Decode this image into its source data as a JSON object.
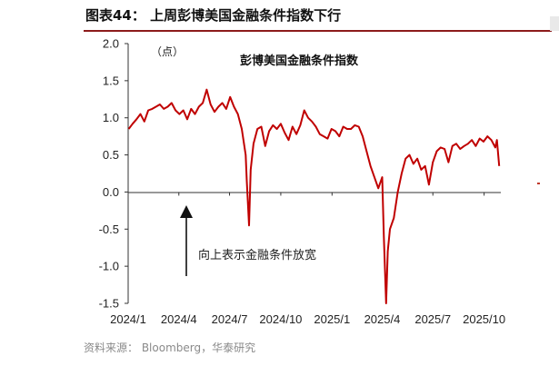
{
  "figure": {
    "title": "图表44：  上周彭博美国金融条件指数下行",
    "source": "资料来源：  Bloomberg，华泰研究"
  },
  "chart_data": {
    "type": "line",
    "title": "彭博美国金融条件指数",
    "unit": "（点）",
    "xlabel": "",
    "ylabel": "",
    "ylim": [
      -1.5,
      2.0
    ],
    "yticks": [
      "2.0",
      "1.5",
      "1.0",
      "0.5",
      "0.0",
      "-0.5",
      "-1.0",
      "-1.5"
    ],
    "yticks_values": [
      2.0,
      1.5,
      1.0,
      0.5,
      0.0,
      -0.5,
      -1.0,
      -1.5
    ],
    "xticks": [
      "2024/1",
      "2024/4",
      "2024/7",
      "2024/10",
      "2025/1",
      "2025/4",
      "2025/7",
      "2025/10"
    ],
    "xticks_values": [
      "2024-01-01",
      "2024-04-01",
      "2024-07-01",
      "2024-10-01",
      "2025-01-01",
      "2025-04-01",
      "2025-07-01",
      "2025-10-01"
    ],
    "xlim": [
      "2024-01-01",
      "2025-10-31"
    ],
    "grid": false,
    "line_color": "#c00000",
    "series": [
      {
        "x": [
          "2024-01-02",
          "2024-01-09",
          "2024-01-16",
          "2024-01-23",
          "2024-01-30",
          "2024-02-06",
          "2024-02-13",
          "2024-02-20",
          "2024-02-27",
          "2024-03-05",
          "2024-03-12",
          "2024-03-19",
          "2024-03-26",
          "2024-04-02",
          "2024-04-09",
          "2024-04-16",
          "2024-04-23",
          "2024-04-30",
          "2024-05-07",
          "2024-05-14",
          "2024-05-21",
          "2024-05-28",
          "2024-06-04",
          "2024-06-11",
          "2024-06-18",
          "2024-06-25",
          "2024-07-02",
          "2024-07-09",
          "2024-07-16",
          "2024-07-23",
          "2024-07-30",
          "2024-08-01",
          "2024-08-05",
          "2024-08-08",
          "2024-08-13",
          "2024-08-20",
          "2024-08-27",
          "2024-09-03",
          "2024-09-10",
          "2024-09-17",
          "2024-09-24",
          "2024-10-01",
          "2024-10-08",
          "2024-10-15",
          "2024-10-22",
          "2024-10-29",
          "2024-11-05",
          "2024-11-12",
          "2024-11-19",
          "2024-11-26",
          "2024-12-03",
          "2024-12-10",
          "2024-12-17",
          "2024-12-24",
          "2024-12-31",
          "2025-01-07",
          "2025-01-14",
          "2025-01-21",
          "2025-01-28",
          "2025-02-04",
          "2025-02-11",
          "2025-02-18",
          "2025-02-25",
          "2025-03-04",
          "2025-03-11",
          "2025-03-18",
          "2025-03-25",
          "2025-04-01",
          "2025-04-04",
          "2025-04-08",
          "2025-04-11",
          "2025-04-15",
          "2025-04-22",
          "2025-04-29",
          "2025-05-06",
          "2025-05-13",
          "2025-05-20",
          "2025-05-27",
          "2025-06-03",
          "2025-06-10",
          "2025-06-17",
          "2025-06-24",
          "2025-07-01",
          "2025-07-08",
          "2025-07-15",
          "2025-07-22",
          "2025-07-29",
          "2025-08-05",
          "2025-08-12",
          "2025-08-19",
          "2025-08-26",
          "2025-09-02",
          "2025-09-09",
          "2025-09-16",
          "2025-09-23",
          "2025-09-30",
          "2025-10-07",
          "2025-10-14",
          "2025-10-21",
          "2025-10-24",
          "2025-10-28"
        ],
        "values": [
          0.85,
          0.92,
          0.98,
          1.05,
          0.95,
          1.1,
          1.12,
          1.15,
          1.18,
          1.12,
          1.15,
          1.2,
          1.1,
          1.05,
          1.1,
          0.98,
          1.12,
          1.05,
          1.15,
          1.2,
          1.38,
          1.18,
          1.08,
          1.15,
          1.2,
          1.12,
          1.28,
          1.15,
          1.05,
          0.85,
          0.5,
          0.15,
          -0.45,
          0.3,
          0.65,
          0.85,
          0.88,
          0.62,
          0.82,
          0.9,
          0.85,
          0.92,
          0.8,
          0.7,
          0.88,
          0.78,
          0.9,
          1.1,
          1.0,
          0.95,
          0.88,
          0.78,
          0.75,
          0.72,
          0.85,
          0.82,
          0.75,
          0.88,
          0.85,
          0.85,
          0.9,
          0.88,
          0.75,
          0.55,
          0.35,
          0.2,
          0.05,
          0.2,
          -0.6,
          -1.5,
          -0.8,
          -0.5,
          -0.35,
          0.0,
          0.25,
          0.45,
          0.5,
          0.38,
          0.45,
          0.3,
          0.35,
          0.1,
          0.4,
          0.55,
          0.6,
          0.58,
          0.4,
          0.62,
          0.65,
          0.58,
          0.62,
          0.65,
          0.7,
          0.62,
          0.72,
          0.68,
          0.75,
          0.7,
          0.6,
          0.7,
          0.35
        ]
      }
    ],
    "annotation": {
      "text": "向上表示金融条件放宽",
      "arrow_direction": "up"
    }
  }
}
